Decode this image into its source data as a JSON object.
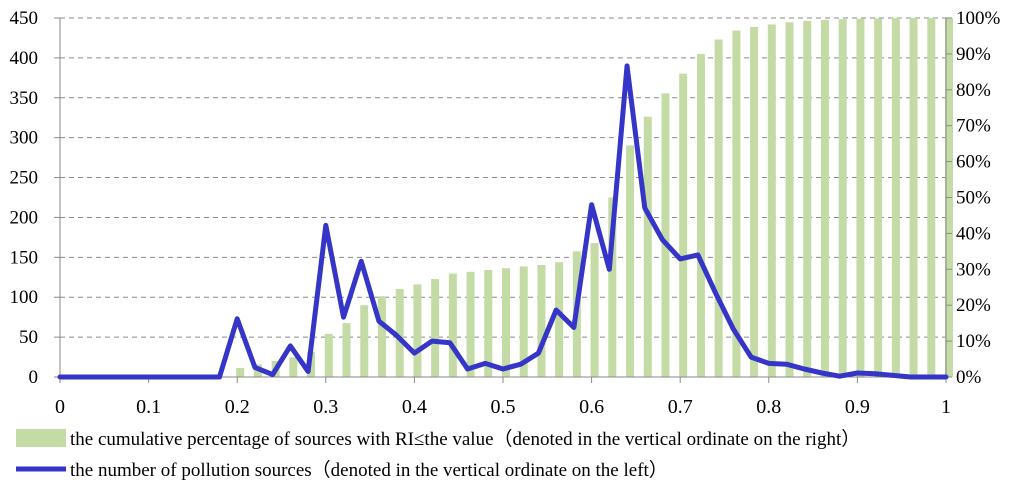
{
  "chart_data": {
    "type": "bar+line",
    "title": "",
    "x": [
      0,
      0.02,
      0.04,
      0.06,
      0.08,
      0.1,
      0.12,
      0.14,
      0.16,
      0.18,
      0.2,
      0.22,
      0.24,
      0.26,
      0.28,
      0.3,
      0.32,
      0.34,
      0.36,
      0.38,
      0.4,
      0.42,
      0.44,
      0.46,
      0.48,
      0.5,
      0.52,
      0.54,
      0.56,
      0.58,
      0.6,
      0.62,
      0.64,
      0.66,
      0.68,
      0.7,
      0.72,
      0.74,
      0.76,
      0.78,
      0.8,
      0.82,
      0.84,
      0.86,
      0.88,
      0.9,
      0.92,
      0.94,
      0.96,
      0.98,
      1.0
    ],
    "xlim": [
      0,
      1
    ],
    "x_ticks": [
      "0",
      "0.1",
      "0.2",
      "0.3",
      "0.4",
      "0.5",
      "0.6",
      "0.7",
      "0.8",
      "0.9",
      "1"
    ],
    "left_axis": {
      "ylim": [
        0,
        450
      ],
      "ticks": [
        "0",
        "50",
        "100",
        "150",
        "200",
        "250",
        "300",
        "350",
        "400",
        "450"
      ]
    },
    "right_axis": {
      "ylim": [
        0,
        100
      ],
      "ticks": [
        "0%",
        "10%",
        "20%",
        "30%",
        "40%",
        "50%",
        "60%",
        "70%",
        "80%",
        "90%",
        "100%"
      ]
    },
    "grid": "horizontal dashed",
    "series": [
      {
        "name": "the cumulative percentage of sources with RI≤the value（denoted in the vertical ordinate on the right）",
        "kind": "bar",
        "axis": "right",
        "color": "#c4dba6",
        "values": [
          0,
          0,
          0,
          0,
          0,
          0,
          0,
          0,
          0,
          0,
          2.5,
          3.5,
          4.5,
          5.5,
          7,
          12,
          15,
          20,
          22.5,
          24.5,
          25.8,
          27.3,
          28.8,
          29.3,
          29.8,
          30.3,
          30.8,
          31.2,
          32,
          35,
          37.3,
          50,
          64.5,
          72.5,
          79,
          84.5,
          90,
          94,
          96.5,
          97.5,
          98.2,
          98.8,
          99.2,
          99.5,
          99.7,
          99.8,
          99.9,
          100,
          100,
          100,
          100
        ]
      },
      {
        "name": "the number of pollution sources（denoted in the vertical ordinate on the left）",
        "kind": "line",
        "axis": "left",
        "color": "#3535c8",
        "values": [
          0,
          0,
          0,
          0,
          0,
          0,
          0,
          0,
          0,
          0,
          73,
          12,
          3,
          39,
          7,
          190,
          75,
          145,
          70,
          52,
          30,
          45,
          43,
          10,
          17,
          10,
          16,
          30,
          84,
          62,
          216,
          135,
          390,
          212,
          172,
          148,
          153,
          105,
          60,
          25,
          17,
          16,
          10,
          5,
          1,
          5,
          4,
          2,
          0,
          0,
          0
        ]
      }
    ],
    "legend": "bottom"
  }
}
